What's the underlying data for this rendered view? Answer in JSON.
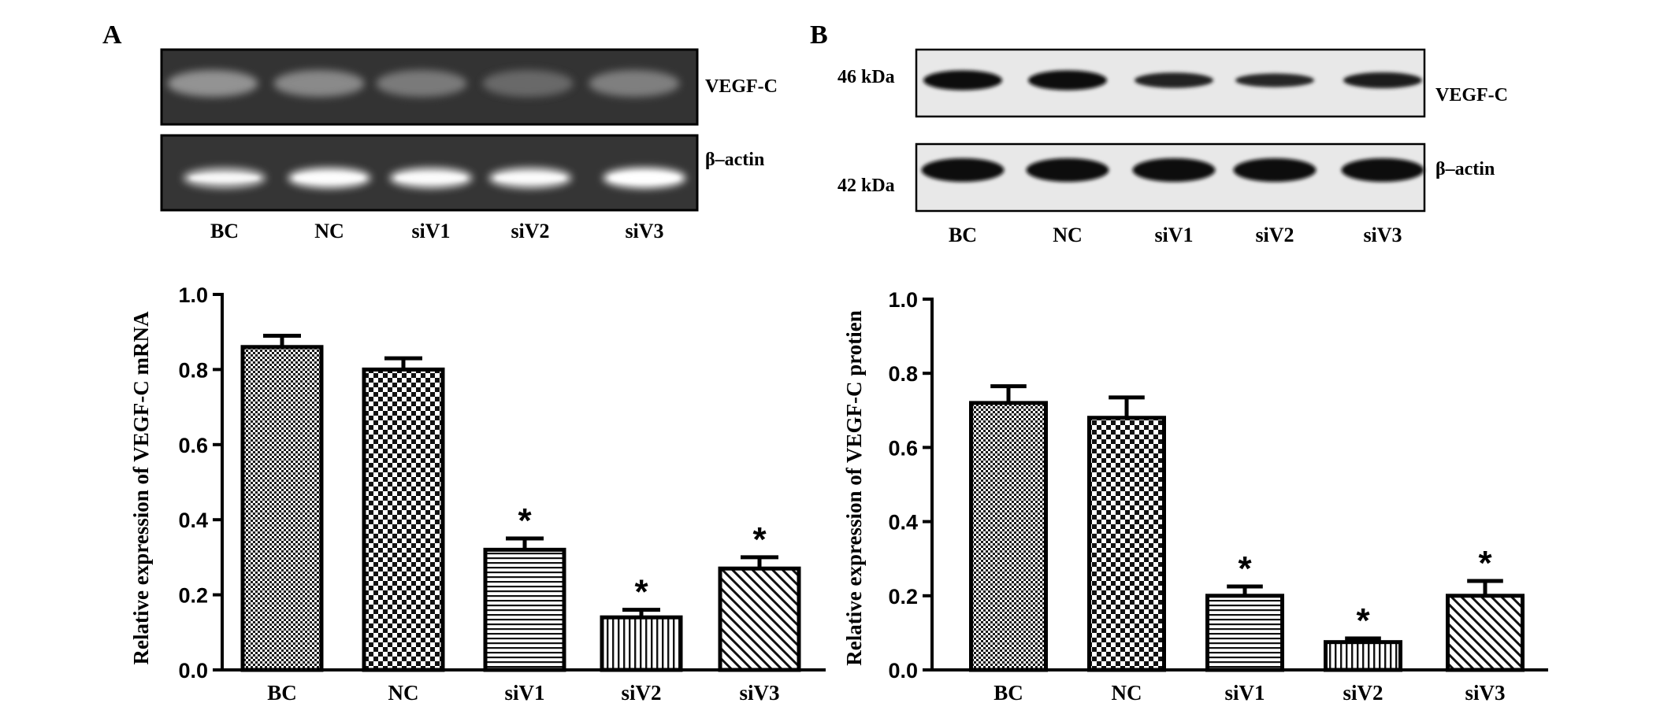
{
  "panels": [
    {
      "letter": "A",
      "blot": {
        "strips": [
          {
            "label": "VEGF-C",
            "band_intensity": [
              0.55,
              0.5,
              0.42,
              0.32,
              0.45
            ],
            "band_style": "rt-pcr"
          },
          {
            "label": "β–actin",
            "band_intensity": [
              0.8,
              0.95,
              0.92,
              0.9,
              1.0
            ],
            "band_style": "rt-pcr"
          }
        ],
        "lanes": [
          "BC",
          "NC",
          "siV1",
          "siV2",
          "siV3"
        ],
        "mw_labels": []
      },
      "chart_data": {
        "type": "bar",
        "categories": [
          "BC",
          "NC",
          "siV1",
          "siV2",
          "siV3"
        ],
        "values": [
          0.86,
          0.8,
          0.32,
          0.14,
          0.27
        ],
        "errors": [
          0.03,
          0.03,
          0.03,
          0.02,
          0.03
        ],
        "significance": [
          "",
          "",
          "*",
          "*",
          "*"
        ],
        "patterns": [
          "fine-check",
          "coarse-check",
          "horizontal",
          "vertical",
          "diagonal"
        ],
        "ylabel": "Relative  expression of VEGF-C mRNA",
        "xlabel": "",
        "ylim": [
          0,
          1.0
        ],
        "yticks": [
          "0.0",
          "0.2",
          "0.4",
          "0.6",
          "0.8",
          "1.0"
        ],
        "grid": false
      }
    },
    {
      "letter": "B",
      "blot": {
        "strips": [
          {
            "label": "VEGF-C",
            "band_intensity": [
              0.95,
              0.95,
              0.55,
              0.4,
              0.6
            ],
            "band_style": "western"
          },
          {
            "label": "β–actin",
            "band_intensity": [
              1.0,
              1.0,
              1.0,
              1.0,
              1.0
            ],
            "band_style": "western"
          }
        ],
        "lanes": [
          "BC",
          "NC",
          "siV1",
          "siV2",
          "siV3"
        ],
        "mw_labels": [
          "46  kDa",
          "42  kDa"
        ]
      },
      "chart_data": {
        "type": "bar",
        "categories": [
          "BC",
          "NC",
          "siV1",
          "siV2",
          "siV3"
        ],
        "values": [
          0.72,
          0.68,
          0.2,
          0.075,
          0.2
        ],
        "errors": [
          0.045,
          0.055,
          0.025,
          0.01,
          0.04
        ],
        "significance": [
          "",
          "",
          "*",
          "*",
          "*"
        ],
        "patterns": [
          "fine-check",
          "coarse-check",
          "horizontal",
          "vertical",
          "diagonal"
        ],
        "ylabel": "Relative expression of VEGF-C protien",
        "xlabel": "",
        "ylim": [
          0,
          1.0
        ],
        "yticks": [
          "0.0",
          "0.2",
          "0.4",
          "0.6",
          "0.8",
          "1.0"
        ],
        "grid": false
      }
    }
  ]
}
